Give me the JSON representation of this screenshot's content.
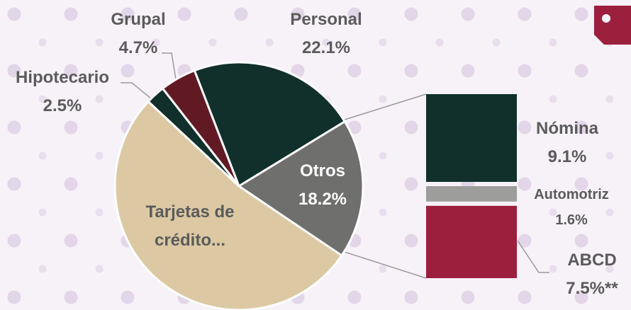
{
  "chart_data": {
    "type": "pie",
    "categories": [
      "Personal",
      "Otros",
      "Tarjetas de crédito...",
      "Hipotecario",
      "Grupal"
    ],
    "values": [
      22.1,
      18.2,
      52.5,
      2.5,
      4.7
    ],
    "value_labels": [
      "22.1%",
      "18.2%",
      null,
      "2.5%",
      "4.7%"
    ],
    "colors": [
      "#12302b",
      "#6f6f6e",
      "#dcc9a3",
      "#12302b",
      "#611a24"
    ],
    "breakdown": {
      "categories": [
        "Nómina",
        "Automotriz",
        "ABCD"
      ],
      "values": [
        9.1,
        1.6,
        7.5
      ],
      "value_labels": [
        "9.1%",
        "1.6%",
        "7.5%**"
      ],
      "colors": [
        "#12302b",
        "#9d9d9c",
        "#9c1f3e"
      ]
    }
  }
}
